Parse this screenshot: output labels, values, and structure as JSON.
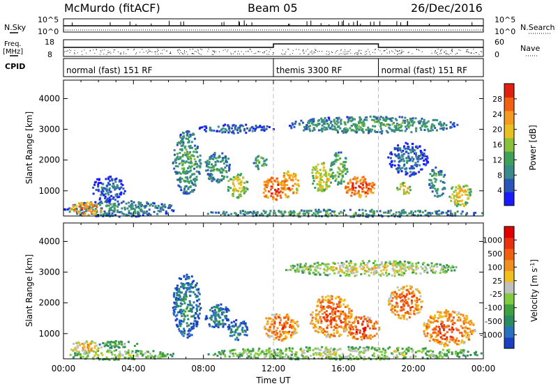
{
  "header": {
    "station": "McMurdo (fitACF)",
    "beam": "Beam 05",
    "date": "26/Dec/2016"
  },
  "top_panels": {
    "nsky_label": "N.Sky",
    "nsky_ticks": [
      "10^5",
      "10^0"
    ],
    "nsearch_label": "N.Search",
    "nsearch_ticks": [
      "10^5",
      "10^0"
    ],
    "freq_label": "Freq.",
    "freq_unit": "[MHz]",
    "freq_ticks": [
      "18",
      "8"
    ],
    "nave_label": "Nave",
    "nave_ticks": [
      "60",
      "0"
    ],
    "cpid_label": "CPID",
    "cpid_segments": [
      {
        "label": "normal (fast) 151 RF",
        "start_h": 0,
        "end_h": 12
      },
      {
        "label": "themis 3300 RF",
        "start_h": 12,
        "end_h": 18
      },
      {
        "label": "normal (fast) 151 RF",
        "start_h": 18,
        "end_h": 24
      }
    ]
  },
  "chart_data": [
    {
      "type": "heatmap",
      "id": "power",
      "ylabel": "Slant Range [km]",
      "xlabel": "",
      "ylim": [
        180,
        4600
      ],
      "xlim": [
        0,
        24
      ],
      "yticks": [
        "1000",
        "2000",
        "3000",
        "4000"
      ],
      "colorbar": {
        "label": "Power [dB]",
        "ticks": [
          "4",
          "8",
          "12",
          "16",
          "20",
          "24",
          "28"
        ],
        "colors": [
          "#1a1aff",
          "#2a55b8",
          "#3b8a8a",
          "#3fa05a",
          "#8ac03a",
          "#e8c020",
          "#f59a20",
          "#f06010",
          "#e02010"
        ]
      },
      "blobs": [
        {
          "t0": 0.0,
          "t1": 6.5,
          "r0": 180,
          "r1": 700,
          "level": 0.3
        },
        {
          "t0": 0.3,
          "t1": 2.2,
          "r0": 200,
          "r1": 650,
          "level": 0.75
        },
        {
          "t0": 1.5,
          "t1": 3.5,
          "r0": 700,
          "r1": 1500,
          "level": 0.2
        },
        {
          "t0": 6.2,
          "t1": 7.8,
          "r0": 900,
          "r1": 3000,
          "level": 0.35
        },
        {
          "t0": 8.0,
          "t1": 9.5,
          "r0": 1300,
          "r1": 2300,
          "level": 0.35
        },
        {
          "t0": 9.3,
          "t1": 10.5,
          "r0": 800,
          "r1": 1600,
          "level": 0.55
        },
        {
          "t0": 10.8,
          "t1": 11.6,
          "r0": 1700,
          "r1": 2200,
          "level": 0.4
        },
        {
          "t0": 11.3,
          "t1": 12.6,
          "r0": 700,
          "r1": 1500,
          "level": 0.85
        },
        {
          "t0": 12.3,
          "t1": 13.4,
          "r0": 800,
          "r1": 1700,
          "level": 0.75
        },
        {
          "t0": 14.1,
          "t1": 15.3,
          "r0": 1000,
          "r1": 2000,
          "level": 0.6
        },
        {
          "t0": 15.2,
          "t1": 16.2,
          "r0": 1200,
          "r1": 2300,
          "level": 0.45
        },
        {
          "t0": 16.0,
          "t1": 17.8,
          "r0": 800,
          "r1": 1500,
          "level": 0.85
        },
        {
          "t0": 18.5,
          "t1": 20.8,
          "r0": 1500,
          "r1": 2600,
          "level": 0.2
        },
        {
          "t0": 19.0,
          "t1": 19.8,
          "r0": 900,
          "r1": 1300,
          "level": 0.6
        },
        {
          "t0": 20.8,
          "t1": 21.8,
          "r0": 800,
          "r1": 1800,
          "level": 0.35
        },
        {
          "t0": 22.0,
          "t1": 23.3,
          "r0": 500,
          "r1": 1300,
          "level": 0.6
        },
        {
          "t0": 12.5,
          "t1": 22.5,
          "r0": 2900,
          "r1": 3450,
          "level": 0.35
        },
        {
          "t0": 7.5,
          "t1": 12.0,
          "r0": 2900,
          "r1": 3200,
          "level": 0.2
        },
        {
          "t0": 8.0,
          "t1": 23.9,
          "r0": 180,
          "r1": 420,
          "level": 0.35
        }
      ]
    },
    {
      "type": "heatmap",
      "id": "velocity",
      "ylabel": "Slant Range [km]",
      "xlabel": "Time UT",
      "ylim": [
        180,
        4600
      ],
      "xlim": [
        0,
        24
      ],
      "yticks": [
        "1000",
        "2000",
        "3000",
        "4000"
      ],
      "xticks": [
        "00:00",
        "04:00",
        "08:00",
        "12:00",
        "16:00",
        "20:00",
        "00:00"
      ],
      "colorbar": {
        "label": "Velocity [m s",
        "label_sup": "-1",
        "label_end": "]",
        "ticks": [
          "1000",
          "500",
          "100",
          "25",
          "-25",
          "-100",
          "-500",
          "-1000"
        ],
        "colors": [
          "#1a40c0",
          "#2a70c0",
          "#2a8a60",
          "#40a040",
          "#80cc40",
          "#c0c0c0",
          "#f0c020",
          "#f09020",
          "#f06010",
          "#e83010",
          "#e00000"
        ]
      },
      "blobs": [
        {
          "t0": 0.0,
          "t1": 6.3,
          "r0": 180,
          "r1": 500,
          "level": 0.45
        },
        {
          "t0": 0.2,
          "t1": 2.2,
          "r0": 400,
          "r1": 800,
          "level": 0.6
        },
        {
          "t0": 2.0,
          "t1": 4.2,
          "r0": 550,
          "r1": 800,
          "level": 0.35
        },
        {
          "t0": 6.2,
          "t1": 7.8,
          "r0": 900,
          "r1": 3000,
          "level": 0.2
        },
        {
          "t0": 8.0,
          "t1": 9.5,
          "r0": 1200,
          "r1": 2000,
          "level": 0.2
        },
        {
          "t0": 9.3,
          "t1": 10.5,
          "r0": 800,
          "r1": 1500,
          "level": 0.2
        },
        {
          "t0": 11.3,
          "t1": 13.4,
          "r0": 800,
          "r1": 1700,
          "level": 0.75
        },
        {
          "t0": 14.0,
          "t1": 16.5,
          "r0": 900,
          "r1": 2300,
          "level": 0.75
        },
        {
          "t0": 16.0,
          "t1": 18.0,
          "r0": 800,
          "r1": 1600,
          "level": 0.8
        },
        {
          "t0": 18.5,
          "t1": 20.5,
          "r0": 1500,
          "r1": 2600,
          "level": 0.75
        },
        {
          "t0": 20.5,
          "t1": 23.5,
          "r0": 600,
          "r1": 1800,
          "level": 0.75
        },
        {
          "t0": 12.5,
          "t1": 22.5,
          "r0": 2900,
          "r1": 3400,
          "level": 0.5
        },
        {
          "t0": 8.0,
          "t1": 23.9,
          "r0": 180,
          "r1": 600,
          "level": 0.45
        }
      ]
    }
  ]
}
